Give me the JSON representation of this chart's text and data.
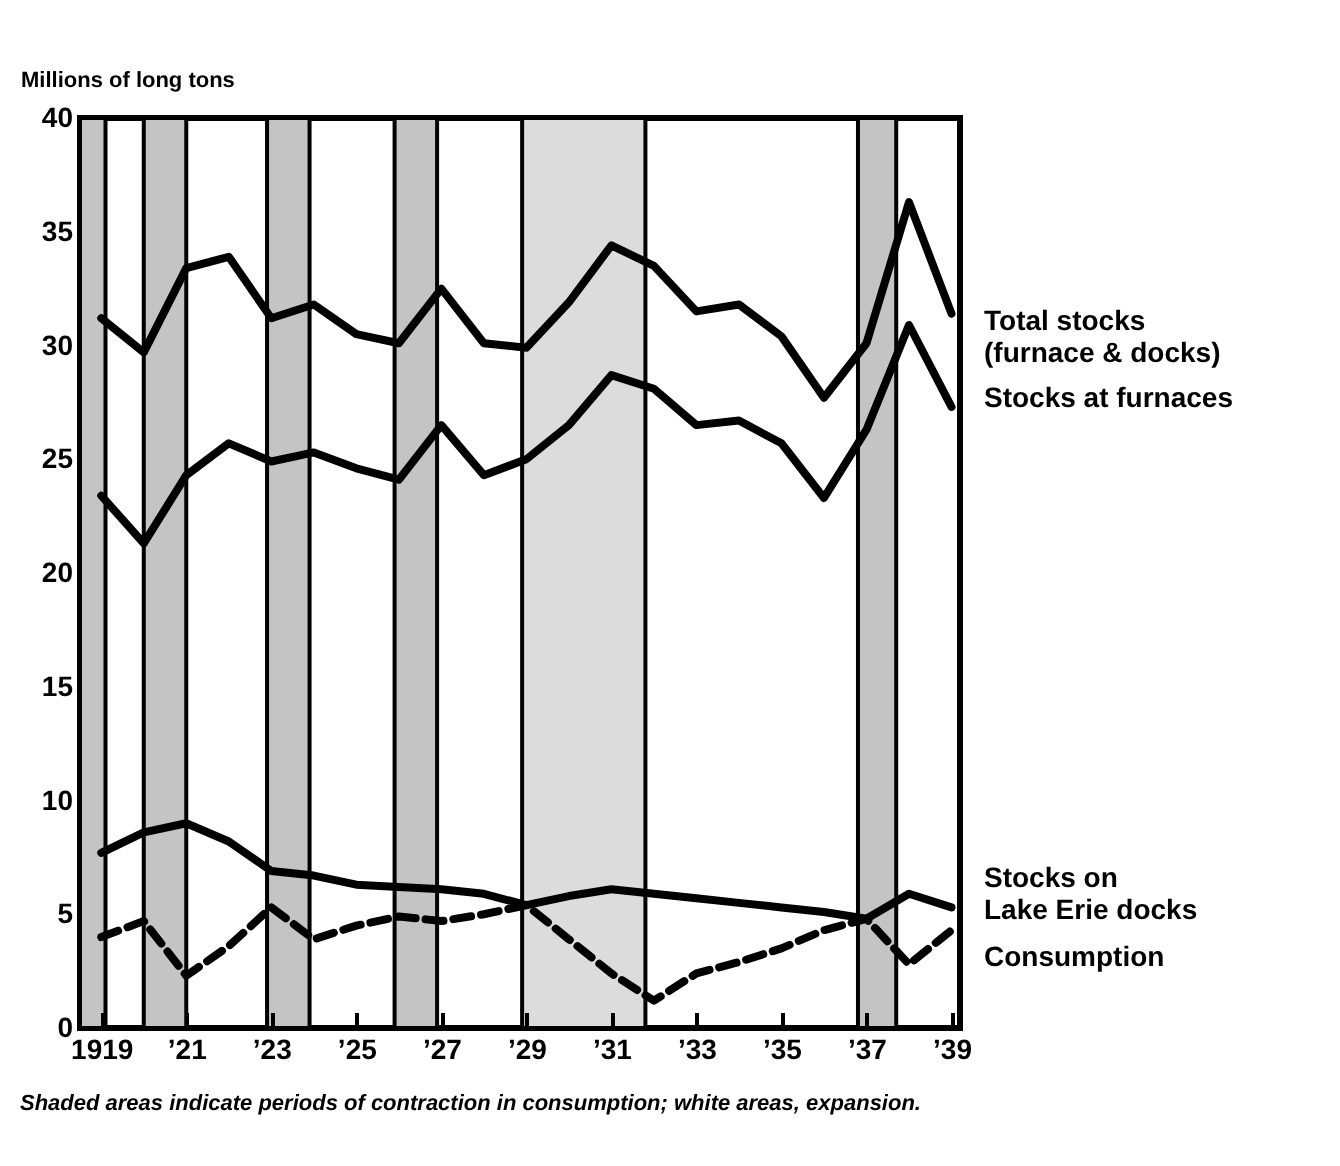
{
  "chart_data": {
    "type": "line",
    "ylabel": "Millions of long tons",
    "x": [
      1919,
      1920,
      1921,
      1922,
      1923,
      1924,
      1925,
      1926,
      1927,
      1928,
      1929,
      1930,
      1931,
      1932,
      1933,
      1934,
      1935,
      1936,
      1937,
      1938,
      1939
    ],
    "series": [
      {
        "name": "Total stocks\n(furnace & docks)",
        "color": "#000000",
        "line_style": "solid",
        "values": [
          31.2,
          29.7,
          33.4,
          33.9,
          31.2,
          31.8,
          30.5,
          30.1,
          32.5,
          30.1,
          29.9,
          31.9,
          34.4,
          33.5,
          31.5,
          31.8,
          30.4,
          27.7,
          30.1,
          36.3,
          31.4
        ]
      },
      {
        "name": "Stocks at furnaces",
        "color": "#000000",
        "line_style": "solid",
        "values": [
          23.4,
          21.3,
          24.3,
          25.7,
          24.9,
          25.3,
          24.6,
          24.1,
          26.5,
          24.3,
          25.0,
          26.5,
          28.7,
          28.1,
          26.5,
          26.7,
          25.7,
          23.3,
          26.3,
          30.9,
          27.3
        ]
      },
      {
        "name": "Stocks on\nLake Erie docks",
        "color": "#000000",
        "line_style": "solid",
        "values": [
          7.7,
          8.6,
          9.0,
          8.2,
          6.9,
          6.7,
          6.3,
          6.2,
          6.1,
          5.9,
          5.4,
          5.8,
          6.1,
          5.9,
          5.7,
          5.5,
          5.3,
          5.1,
          4.8,
          5.9,
          5.3
        ]
      },
      {
        "name": "Consumption",
        "color": "#000000",
        "line_style": "dashed",
        "values": [
          4.0,
          4.7,
          2.3,
          3.6,
          5.3,
          3.9,
          4.5,
          4.9,
          4.7,
          5.0,
          5.4,
          3.9,
          2.4,
          1.2,
          2.4,
          2.9,
          3.5,
          4.3,
          4.8,
          2.8,
          4.3
        ]
      }
    ],
    "bands": [
      {
        "axis": "x",
        "from": 1918.5,
        "to": 1919.1,
        "color": "#c4c4c4"
      },
      {
        "axis": "x",
        "from": 1920.0,
        "to": 1921.0,
        "color": "#c4c4c4"
      },
      {
        "axis": "x",
        "from": 1922.9,
        "to": 1923.9,
        "color": "#c4c4c4"
      },
      {
        "axis": "x",
        "from": 1925.9,
        "to": 1926.9,
        "color": "#c4c4c4"
      },
      {
        "axis": "x",
        "from": 1928.9,
        "to": 1931.8,
        "color": "#dcdcdc"
      },
      {
        "axis": "x",
        "from": 1936.8,
        "to": 1937.7,
        "color": "#c4c4c4"
      }
    ],
    "xlim": [
      1918.5,
      1939.2
    ],
    "xticks": [
      {
        "value": 1919,
        "label": "1919"
      },
      {
        "value": 1921,
        "label": "’21"
      },
      {
        "value": 1923,
        "label": "’23"
      },
      {
        "value": 1925,
        "label": "’25"
      },
      {
        "value": 1927,
        "label": "’27"
      },
      {
        "value": 1929,
        "label": "’29"
      },
      {
        "value": 1931,
        "label": "’31"
      },
      {
        "value": 1933,
        "label": "’33"
      },
      {
        "value": 1935,
        "label": "’35"
      },
      {
        "value": 1937,
        "label": "’37"
      },
      {
        "value": 1939,
        "label": "’39"
      }
    ],
    "ylim": [
      0,
      40
    ],
    "yticks": [
      0,
      5,
      10,
      15,
      20,
      25,
      30,
      35,
      40
    ],
    "grid": false,
    "marker": "none",
    "annotations": [
      "Shaded areas indicate periods of contraction in consumption; white areas, expansion."
    ]
  }
}
